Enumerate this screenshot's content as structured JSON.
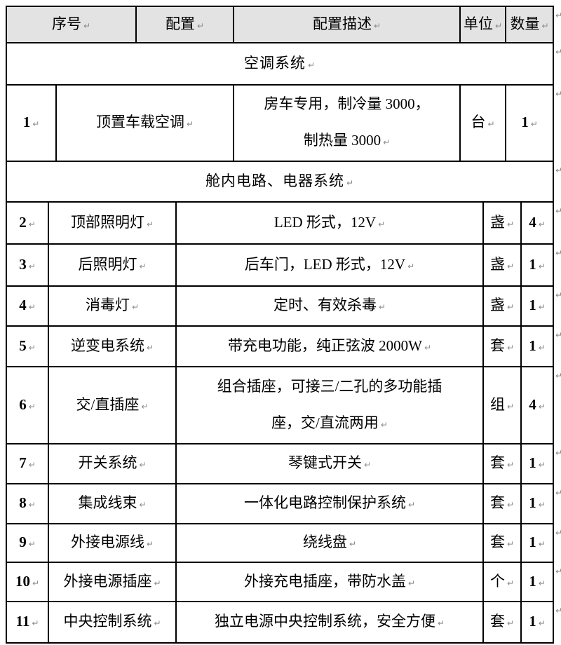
{
  "marks": {
    "cell_end": "↵",
    "row_end": "↵"
  },
  "colors": {
    "header_bg": "#e3e3e3",
    "border": "#000000",
    "mark_gray": "#8a8a8a"
  },
  "table": {
    "headers": {
      "serial": "序号",
      "config": "配置",
      "description": "配置描述",
      "unit": "单位",
      "quantity": "数量"
    },
    "sections": [
      {
        "title": "空调系统",
        "rows": [
          {
            "no": "1",
            "name": "顶置车载空调",
            "desc_lines": [
              "房车专用，制冷量 3000，",
              "制热量 3000"
            ],
            "unit": "台",
            "qty": "1"
          }
        ]
      },
      {
        "title": "舱内电路、电器系统",
        "rows": [
          {
            "no": "2",
            "name": "顶部照明灯",
            "desc": "LED 形式，12V",
            "unit": "盏",
            "qty": "4"
          },
          {
            "no": "3",
            "name": "后照明灯",
            "desc": "后车门，LED 形式，12V",
            "unit": "盏",
            "qty": "1"
          },
          {
            "no": "4",
            "name": "消毒灯",
            "desc": "定时、有效杀毒",
            "unit": "盏",
            "qty": "1"
          },
          {
            "no": "5",
            "name": "逆变电系统",
            "desc": "带充电功能，纯正弦波 2000W",
            "unit": "套",
            "qty": "1"
          },
          {
            "no": "6",
            "name": "交/直插座",
            "desc_lines": [
              "组合插座，可接三/二孔的多功能插",
              "座，交/直流两用"
            ],
            "unit": "组",
            "qty": "4"
          },
          {
            "no": "7",
            "name": "开关系统",
            "desc": "琴键式开关",
            "unit": "套",
            "qty": "1"
          },
          {
            "no": "8",
            "name": "集成线束",
            "desc": "一体化电路控制保护系统",
            "unit": "套",
            "qty": "1"
          },
          {
            "no": "9",
            "name": "外接电源线",
            "desc": "绕线盘",
            "unit": "套",
            "qty": "1"
          },
          {
            "no": "10",
            "name": "外接电源插座",
            "desc": "外接充电插座，带防水盖",
            "unit": "个",
            "qty": "1"
          },
          {
            "no": "11",
            "name": "中央控制系统",
            "desc": "独立电源中央控制系统，安全方便",
            "unit": "套",
            "qty": "1"
          }
        ]
      }
    ]
  }
}
